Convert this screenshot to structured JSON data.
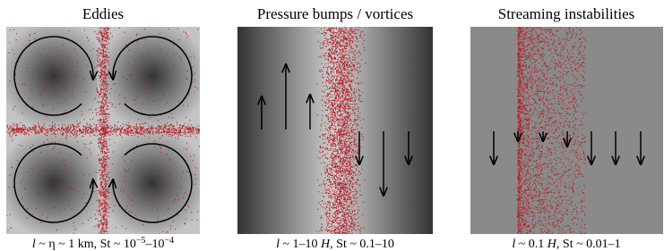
{
  "panels": [
    {
      "title": "Eddies",
      "caption": [
        "l",
        " ~ η ~ 1 km, St ~ 10",
        "−5",
        "–10",
        "−4"
      ]
    },
    {
      "title": "Pressure bumps / vortices",
      "caption": [
        "l",
        " ~ 1–10 ",
        "H",
        ", St ~ 0.1–10"
      ]
    },
    {
      "title": "Streaming instabilities",
      "caption": [
        "l",
        " ~ 0.1 ",
        "H",
        ", St ~ 0.01–1"
      ]
    }
  ]
}
